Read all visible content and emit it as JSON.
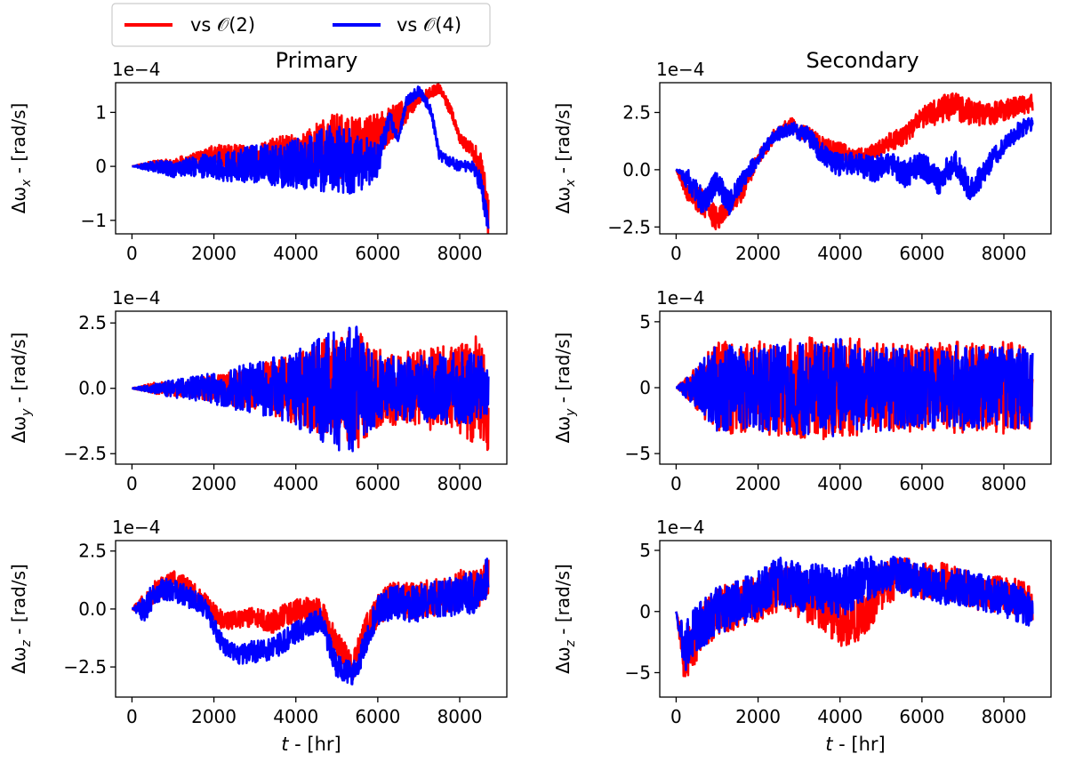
{
  "legend": {
    "placement": "top-left",
    "entries": [
      {
        "label": "vs 𝒪(2)",
        "color": "#ff0000"
      },
      {
        "label": "vs 𝒪(4)",
        "color": "#0000ff"
      }
    ]
  },
  "column_titles": [
    "Primary",
    "Secondary"
  ],
  "xlabel": "t - [hr]",
  "scale_label": "1e−4",
  "chart_data": [
    {
      "type": "line",
      "column": "Primary",
      "component": "x",
      "ylabel": "Δω_x - [rad/s]",
      "scale": "1e-4",
      "xlim": [
        -400,
        9150
      ],
      "ylim": [
        -1.25,
        1.55
      ],
      "xticks": [
        0,
        2000,
        4000,
        6000,
        8000
      ],
      "yticks": [
        -1,
        0,
        1
      ],
      "ytick_labels": [
        "−1",
        "0",
        "1"
      ],
      "series": [
        {
          "name": "vs 𝒪(2)",
          "color": "#ff0000",
          "x": [
            0,
            500,
            1000,
            1500,
            2000,
            2500,
            3000,
            3500,
            4000,
            4500,
            5000,
            5500,
            6000,
            6500,
            7000,
            7500,
            7800,
            8000,
            8300,
            8500,
            8700
          ],
          "y": [
            0,
            0.05,
            0.05,
            0.1,
            0.2,
            0.15,
            0.1,
            0.2,
            0.2,
            0.3,
            0.4,
            0.3,
            0.6,
            0.9,
            1.25,
            1.45,
            1.0,
            0.5,
            0.3,
            0.0,
            -0.9
          ],
          "amp": [
            0,
            0.05,
            0.1,
            0.15,
            0.2,
            0.25,
            0.3,
            0.35,
            0.4,
            0.5,
            0.6,
            0.6,
            0.4,
            0.3,
            0.1,
            0.1,
            0.1,
            0.1,
            0.15,
            0.3,
            0.4
          ]
        },
        {
          "name": "vs 𝒪(4)",
          "color": "#0000ff",
          "x": [
            0,
            500,
            1000,
            1500,
            2000,
            2500,
            3000,
            3500,
            4000,
            4500,
            5000,
            5500,
            6000,
            6300,
            6500,
            6700,
            7000,
            7300,
            7500,
            8000,
            8300,
            8500,
            8700
          ],
          "y": [
            0,
            0.0,
            -0.05,
            0.0,
            0.0,
            0.0,
            0.05,
            0.0,
            0.05,
            0.1,
            0.15,
            0.05,
            0.1,
            0.9,
            0.5,
            1.2,
            1.4,
            1.05,
            0.2,
            0.0,
            0.0,
            -0.3,
            -1.0
          ],
          "amp": [
            0,
            0.1,
            0.15,
            0.2,
            0.25,
            0.3,
            0.35,
            0.4,
            0.45,
            0.55,
            0.65,
            0.6,
            0.3,
            0.15,
            0.1,
            0.1,
            0.1,
            0.1,
            0.1,
            0.1,
            0.1,
            0.2,
            0.25
          ]
        }
      ]
    },
    {
      "type": "line",
      "column": "Secondary",
      "component": "x",
      "ylabel": "Δω_x - [rad/s]",
      "scale": "1e-4",
      "xlim": [
        -400,
        9150
      ],
      "ylim": [
        -2.8,
        3.8
      ],
      "xticks": [
        0,
        2000,
        4000,
        6000,
        8000
      ],
      "yticks": [
        -2.5,
        0.0,
        2.5
      ],
      "ytick_labels": [
        "−2.5",
        "0.0",
        "2.5"
      ],
      "series": [
        {
          "name": "vs 𝒪(2)",
          "color": "#ff0000",
          "x": [
            0,
            300,
            700,
            1000,
            1300,
            1600,
            2000,
            2400,
            2800,
            3200,
            3600,
            4000,
            4400,
            4800,
            5200,
            5600,
            6000,
            6400,
            6800,
            7200,
            7600,
            8000,
            8400,
            8700
          ],
          "y": [
            0,
            -1.0,
            -1.5,
            -2.2,
            -1.5,
            -1.0,
            0.5,
            1.5,
            2.0,
            1.5,
            1.0,
            0.8,
            0.5,
            0.7,
            1.2,
            1.5,
            2.3,
            2.6,
            2.8,
            2.5,
            2.4,
            2.6,
            2.8,
            2.9
          ],
          "amp": [
            0,
            0.5,
            0.6,
            0.5,
            0.4,
            0.4,
            0.3,
            0.3,
            0.3,
            0.4,
            0.4,
            0.4,
            0.4,
            0.4,
            0.4,
            0.4,
            0.5,
            0.6,
            0.6,
            0.6,
            0.5,
            0.5,
            0.4,
            0.4
          ]
        },
        {
          "name": "vs 𝒪(4)",
          "color": "#0000ff",
          "x": [
            0,
            300,
            700,
            1000,
            1300,
            1600,
            2000,
            2400,
            2800,
            3200,
            3600,
            4000,
            4400,
            4800,
            5200,
            5600,
            6000,
            6400,
            6800,
            7200,
            7600,
            8000,
            8400,
            8700
          ],
          "y": [
            0,
            -0.5,
            -1.5,
            -0.5,
            -1.5,
            -0.5,
            0.5,
            1.5,
            1.8,
            1.5,
            0.6,
            0.2,
            0.3,
            0.0,
            0.3,
            -0.2,
            0.2,
            -0.5,
            0.3,
            -1.0,
            0.2,
            1.0,
            1.8,
            2.0
          ],
          "amp": [
            0,
            0.5,
            0.6,
            0.5,
            0.5,
            0.4,
            0.3,
            0.3,
            0.3,
            0.4,
            0.5,
            0.5,
            0.5,
            0.6,
            0.5,
            0.6,
            0.6,
            0.6,
            0.6,
            0.6,
            0.5,
            0.4,
            0.4,
            0.3
          ]
        }
      ]
    },
    {
      "type": "line",
      "column": "Primary",
      "component": "y",
      "ylabel": "Δω_y - [rad/s]",
      "scale": "1e-4",
      "xlim": [
        -400,
        9150
      ],
      "ylim": [
        -2.9,
        2.95
      ],
      "xticks": [
        0,
        2000,
        4000,
        6000,
        8000
      ],
      "yticks": [
        -2.5,
        0.0,
        2.5
      ],
      "ytick_labels": [
        "−2.5",
        "0.0",
        "2.5"
      ],
      "series": [
        {
          "name": "vs 𝒪(2)",
          "color": "#ff0000",
          "x": [
            0,
            500,
            1000,
            1500,
            2000,
            2500,
            3000,
            3500,
            4000,
            4500,
            5000,
            5500,
            6000,
            6500,
            7000,
            7500,
            8000,
            8500,
            8700
          ],
          "y": [
            0,
            0,
            0,
            0,
            0,
            0,
            0,
            0,
            0,
            0,
            0,
            0,
            0,
            0,
            0,
            0,
            0,
            0,
            0
          ],
          "amp": [
            0,
            0.2,
            0.3,
            0.4,
            0.5,
            0.7,
            0.9,
            1.1,
            1.4,
            1.7,
            2.1,
            2.3,
            1.5,
            1.4,
            1.5,
            1.7,
            1.8,
            2.2,
            2.5
          ]
        },
        {
          "name": "vs 𝒪(4)",
          "color": "#0000ff",
          "x": [
            0,
            500,
            1000,
            1500,
            2000,
            2500,
            3000,
            3500,
            4000,
            4500,
            5000,
            5500,
            6000,
            6500,
            7000,
            7500,
            8000,
            8500,
            8700
          ],
          "y": [
            0,
            0,
            0,
            0,
            0,
            0,
            0,
            0,
            0,
            0,
            0,
            0,
            0,
            0,
            0,
            0,
            0,
            0,
            0
          ],
          "amp": [
            0,
            0.2,
            0.35,
            0.45,
            0.6,
            0.8,
            1.0,
            1.2,
            1.5,
            1.9,
            2.4,
            2.5,
            1.3,
            1.2,
            1.3,
            1.3,
            1.4,
            1.3,
            1.2
          ]
        }
      ]
    },
    {
      "type": "line",
      "column": "Secondary",
      "component": "y",
      "ylabel": "Δω_y - [rad/s]",
      "scale": "1e-4",
      "xlim": [
        -400,
        9150
      ],
      "ylim": [
        -5.8,
        5.8
      ],
      "xticks": [
        0,
        2000,
        4000,
        6000,
        8000
      ],
      "yticks": [
        -5,
        0,
        5
      ],
      "ytick_labels": [
        "−5",
        "0",
        "5"
      ],
      "series": [
        {
          "name": "vs 𝒪(2)",
          "color": "#ff0000",
          "x": [
            0,
            1000,
            2000,
            3000,
            4000,
            5000,
            6000,
            7000,
            8000,
            8700
          ],
          "y": [
            0,
            0,
            0,
            0,
            0,
            0,
            0,
            0,
            0,
            0
          ],
          "amp": [
            0,
            3.5,
            3.5,
            3.8,
            4.0,
            3.5,
            3.3,
            3.5,
            3.5,
            3.3
          ]
        },
        {
          "name": "vs 𝒪(4)",
          "color": "#0000ff",
          "x": [
            0,
            1000,
            2000,
            3000,
            4000,
            5000,
            6000,
            7000,
            8000,
            8700
          ],
          "y": [
            0,
            0,
            0,
            0,
            0,
            0,
            0,
            0,
            0,
            0
          ],
          "amp": [
            0,
            3.3,
            3.3,
            3.6,
            3.7,
            3.3,
            3.0,
            3.3,
            3.1,
            3.0
          ]
        }
      ]
    },
    {
      "type": "line",
      "column": "Primary",
      "component": "z",
      "ylabel": "Δω_z - [rad/s]",
      "scale": "1e-4",
      "xlim": [
        -400,
        9150
      ],
      "ylim": [
        -3.8,
        2.95
      ],
      "xticks": [
        0,
        2000,
        4000,
        6000,
        8000
      ],
      "yticks": [
        -2.5,
        0.0,
        2.5
      ],
      "ytick_labels": [
        "−2.5",
        "0.0",
        "2.5"
      ],
      "series": [
        {
          "name": "vs 𝒪(2)",
          "color": "#ff0000",
          "x": [
            0,
            300,
            600,
            1000,
            1400,
            1800,
            2200,
            2600,
            3000,
            3400,
            3800,
            4200,
            4600,
            5000,
            5400,
            5700,
            6000,
            6400,
            6800,
            7200,
            7600,
            8000,
            8400,
            8700
          ],
          "y": [
            0,
            0.2,
            0.8,
            1.2,
            0.8,
            0.3,
            -0.5,
            -0.5,
            -0.3,
            -0.6,
            -0.2,
            0.0,
            0.0,
            -1.5,
            -2.5,
            -1.0,
            0.0,
            0.5,
            0.3,
            0.5,
            0.5,
            0.8,
            0.8,
            1.5
          ],
          "amp": [
            0,
            0.6,
            0.5,
            0.5,
            0.5,
            0.4,
            0.4,
            0.4,
            0.4,
            0.5,
            0.5,
            0.5,
            0.5,
            0.6,
            0.6,
            0.7,
            0.7,
            0.7,
            0.8,
            0.8,
            0.8,
            0.9,
            0.9,
            0.9
          ]
        },
        {
          "name": "vs 𝒪(4)",
          "color": "#0000ff",
          "x": [
            0,
            300,
            600,
            1000,
            1400,
            1800,
            2200,
            2600,
            3000,
            3400,
            3800,
            4200,
            4600,
            5000,
            5400,
            5700,
            6000,
            6400,
            6800,
            7200,
            7600,
            8000,
            8400,
            8700
          ],
          "y": [
            0,
            0.0,
            0.8,
            0.8,
            0.5,
            0.0,
            -1.5,
            -2.0,
            -1.8,
            -1.7,
            -1.3,
            -0.8,
            -0.5,
            -2.5,
            -2.8,
            -1.5,
            0.0,
            0.3,
            0.2,
            0.3,
            0.5,
            0.6,
            0.7,
            1.5
          ],
          "amp": [
            0,
            0.6,
            0.5,
            0.5,
            0.5,
            0.4,
            0.4,
            0.4,
            0.5,
            0.5,
            0.5,
            0.5,
            0.5,
            0.5,
            0.5,
            0.6,
            0.7,
            0.7,
            0.8,
            0.8,
            0.8,
            0.9,
            0.9,
            0.9
          ]
        }
      ]
    },
    {
      "type": "line",
      "column": "Secondary",
      "component": "z",
      "ylabel": "Δω_z - [rad/s]",
      "scale": "1e-4",
      "xlim": [
        -400,
        9150
      ],
      "ylim": [
        -7.0,
        5.8
      ],
      "xticks": [
        0,
        2000,
        4000,
        6000,
        8000
      ],
      "yticks": [
        -5,
        0,
        5
      ],
      "ytick_labels": [
        "−5",
        "0",
        "5"
      ],
      "series": [
        {
          "name": "vs 𝒪(2)",
          "color": "#ff0000",
          "x": [
            0,
            200,
            500,
            1000,
            1500,
            2000,
            2500,
            3000,
            3500,
            4000,
            4500,
            5000,
            5500,
            6000,
            6500,
            7000,
            7500,
            8000,
            8500,
            8700
          ],
          "y": [
            0,
            -4.0,
            -2.0,
            0.0,
            0.5,
            1.0,
            2.0,
            1.5,
            0.5,
            -1.0,
            -0.5,
            2.0,
            3.0,
            2.5,
            2.5,
            2.0,
            1.5,
            1.5,
            1.0,
            0.5
          ],
          "amp": [
            0,
            2.0,
            2.0,
            2.0,
            2.0,
            2.0,
            2.0,
            2.0,
            2.0,
            2.0,
            2.0,
            2.0,
            1.5,
            1.5,
            1.5,
            1.5,
            1.5,
            1.5,
            1.5,
            1.5
          ]
        },
        {
          "name": "vs 𝒪(4)",
          "color": "#0000ff",
          "x": [
            0,
            200,
            500,
            1000,
            1500,
            2000,
            2500,
            3000,
            3500,
            4000,
            4500,
            5000,
            5500,
            6000,
            6500,
            7000,
            7500,
            8000,
            8500,
            8700
          ],
          "y": [
            0,
            -3.0,
            -1.5,
            0.0,
            0.5,
            1.5,
            2.5,
            2.0,
            2.0,
            1.5,
            2.5,
            3.0,
            3.0,
            2.5,
            2.0,
            2.0,
            1.5,
            1.0,
            0.5,
            0.0
          ],
          "amp": [
            0,
            2.0,
            2.0,
            2.0,
            2.0,
            2.0,
            2.0,
            2.0,
            2.0,
            2.0,
            2.0,
            1.5,
            1.5,
            1.5,
            1.5,
            1.5,
            1.5,
            1.5,
            1.5,
            1.5
          ]
        }
      ]
    }
  ]
}
